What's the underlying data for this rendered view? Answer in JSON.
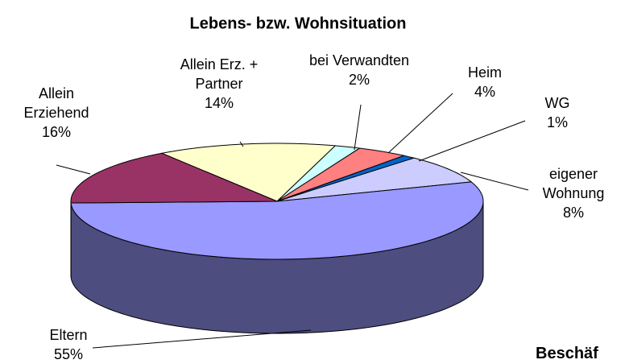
{
  "chart_data": {
    "type": "pie",
    "title": "Lebens- bzw. Wohnsituation",
    "categories": [
      "Allein Erz. + Partner",
      "bei Verwandten",
      "Heim",
      "WG",
      "eigener Wohnung",
      "Eltern",
      "Allein Erziehend"
    ],
    "values": [
      14,
      2,
      4,
      1,
      8,
      55,
      16
    ],
    "value_labels": [
      "14%",
      "2%",
      "4%",
      "1%",
      "8%",
      "55%",
      "16%"
    ],
    "colors": [
      "#ffffcc",
      "#ccffff",
      "#ff8080",
      "#0066cc",
      "#ccccff",
      "#9999ff",
      "#993366"
    ]
  },
  "other_title": "Beschäf"
}
